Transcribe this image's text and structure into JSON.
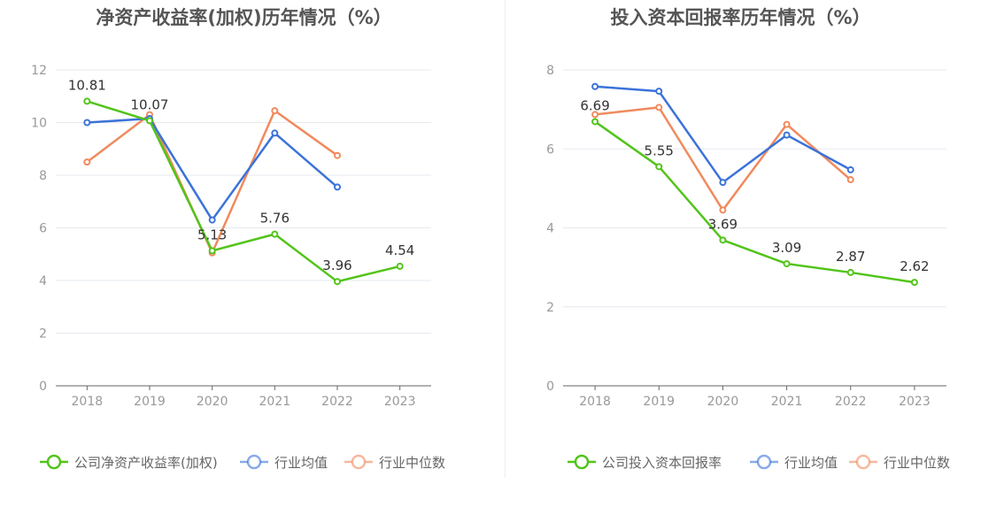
{
  "chart_data": [
    {
      "type": "line",
      "title": "净资产收益率(加权)历年情况（%）",
      "categories": [
        "2018",
        "2019",
        "2020",
        "2021",
        "2022",
        "2023"
      ],
      "ylim": [
        0,
        12
      ],
      "yticks": [
        0,
        2,
        4,
        6,
        8,
        10,
        12
      ],
      "grid": true,
      "legend_position": "bottom",
      "series": [
        {
          "name": "公司净资产收益率(加权)",
          "color": "#52c41a",
          "values": [
            10.81,
            10.07,
            5.13,
            5.76,
            3.96,
            4.54
          ],
          "labels": [
            "10.81",
            "10.07",
            "5.13",
            "5.76",
            "3.96",
            "4.54"
          ]
        },
        {
          "name": "行业均值",
          "color": "#3b73d9",
          "values": [
            10.0,
            10.15,
            6.3,
            9.6,
            7.55,
            null
          ]
        },
        {
          "name": "行业中位数",
          "color": "#f08a5d",
          "values": [
            8.5,
            10.3,
            5.05,
            10.45,
            8.75,
            null
          ]
        }
      ]
    },
    {
      "type": "line",
      "title": "投入资本回报率历年情况（%）",
      "categories": [
        "2018",
        "2019",
        "2020",
        "2021",
        "2022",
        "2023"
      ],
      "ylim": [
        0,
        8
      ],
      "yticks": [
        0,
        2,
        4,
        6,
        8
      ],
      "grid": true,
      "legend_position": "bottom",
      "series": [
        {
          "name": "公司投入资本回报率",
          "color": "#52c41a",
          "values": [
            6.69,
            5.55,
            3.69,
            3.09,
            2.87,
            2.62
          ],
          "labels": [
            "6.69",
            "5.55",
            "3.69",
            "3.09",
            "2.87",
            "2.62"
          ]
        },
        {
          "name": "行业均值",
          "color": "#3b73d9",
          "values": [
            7.58,
            7.46,
            5.15,
            6.35,
            5.47,
            null
          ]
        },
        {
          "name": "行业中位数",
          "color": "#f08a5d",
          "values": [
            6.87,
            7.05,
            4.45,
            6.62,
            5.22,
            null
          ]
        }
      ]
    }
  ]
}
